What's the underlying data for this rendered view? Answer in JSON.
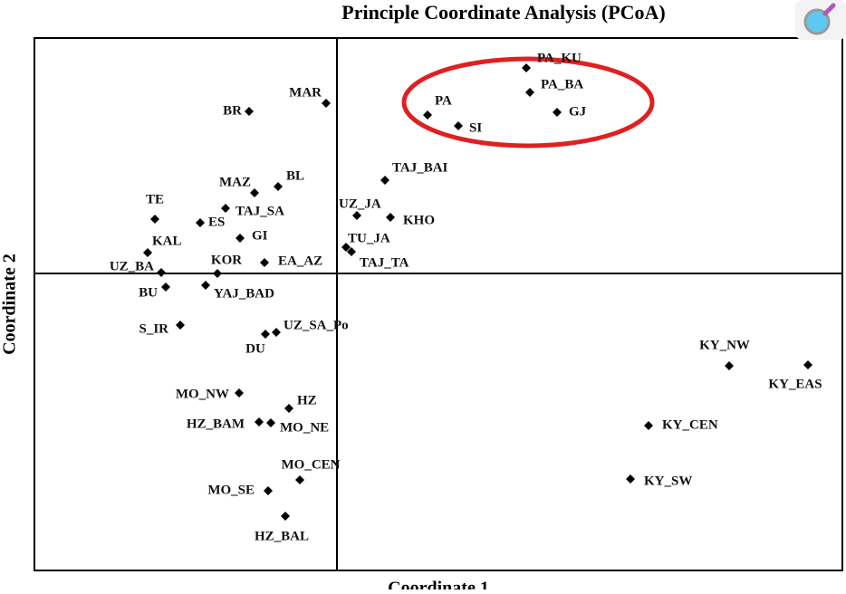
{
  "chart_data": {
    "type": "scatter",
    "title": "Principle Coordinate Analysis (PCoA)",
    "x_label": "Coordinate 1",
    "y_label": "Coordinate 2",
    "color": "#000000",
    "xlim": [
      -0.334,
      0.558
    ],
    "ylim": [
      -0.328,
      0.26
    ],
    "labels": [
      "PA_KU",
      "PA_BA",
      "GJ",
      "PA",
      "SI",
      "MAR",
      "BR",
      "TAJ_BAI",
      "MAZ",
      "BL",
      "TE",
      "TAJ_SA",
      "ES",
      "UZ_JA",
      "KHO",
      "GI",
      "KAL",
      "TU_JA",
      "TAJ_TA",
      "KOR",
      "EA_AZ",
      "UZ_BA",
      "BU",
      "YAJ_BAD",
      "S_IR",
      "UZ_SA_Po",
      "DU",
      "KY_NW",
      "KY_EAS",
      "MO_NW",
      "HZ",
      "HZ_BAM",
      "MO_NE",
      "KY_CEN",
      "MO_CEN",
      "KY_SW",
      "MO_SE",
      "HZ_BAL"
    ],
    "x": [
      0.209,
      0.213,
      0.243,
      0.1,
      0.134,
      -0.012,
      -0.097,
      0.053,
      -0.091,
      -0.065,
      -0.201,
      -0.123,
      -0.151,
      0.022,
      0.059,
      -0.107,
      -0.209,
      0.01,
      0.016,
      -0.132,
      -0.08,
      -0.194,
      -0.189,
      -0.145,
      -0.173,
      -0.067,
      -0.079,
      0.433,
      0.52,
      -0.108,
      -0.053,
      -0.086,
      -0.073,
      0.344,
      -0.041,
      0.324,
      -0.076,
      -0.057
    ],
    "values": [
      0.227,
      0.2,
      0.178,
      0.175,
      0.163,
      0.188,
      0.179,
      0.103,
      0.089,
      0.096,
      0.06,
      0.072,
      0.056,
      0.064,
      0.062,
      0.039,
      0.023,
      0.029,
      0.024,
      0.0,
      0.012,
      0.001,
      -0.015,
      -0.013,
      -0.057,
      -0.065,
      -0.067,
      -0.102,
      -0.101,
      -0.132,
      -0.149,
      -0.164,
      -0.165,
      -0.168,
      -0.228,
      -0.227,
      -0.24,
      -0.268
    ]
  }
}
